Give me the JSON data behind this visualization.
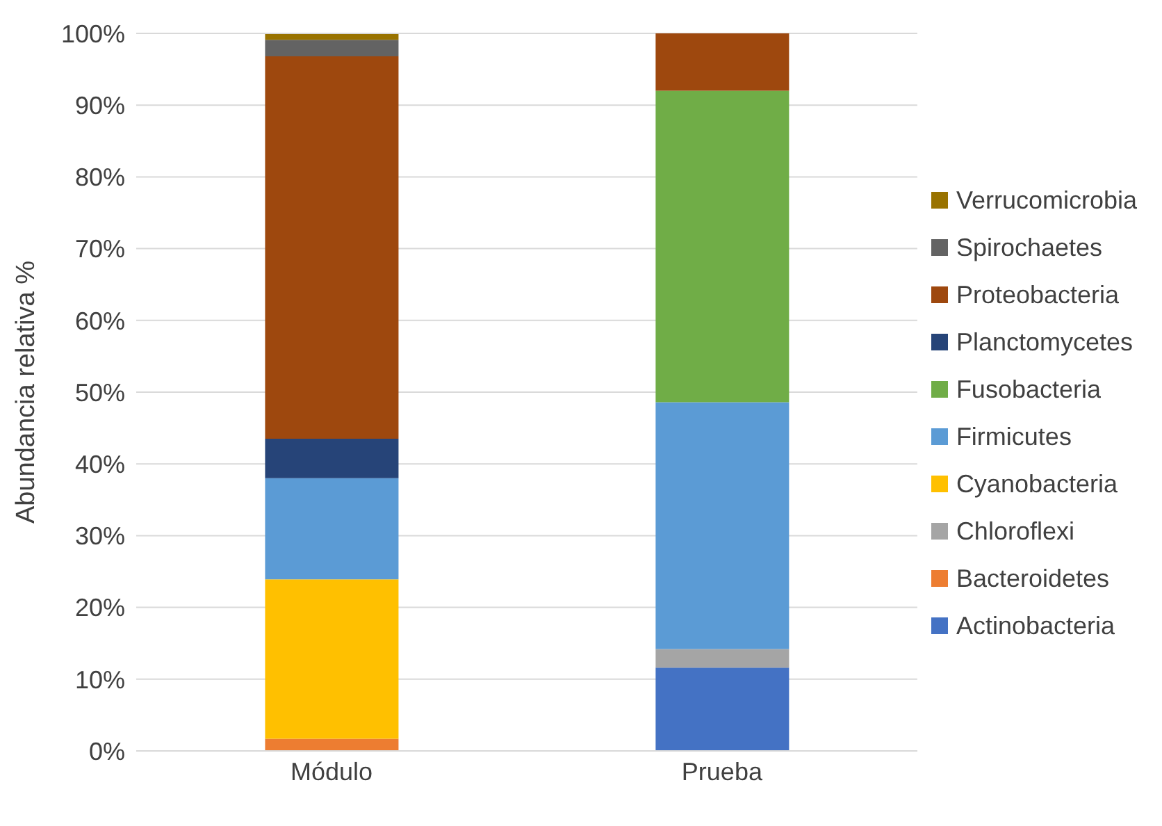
{
  "chart_data": {
    "type": "bar",
    "stacked": true,
    "categories": [
      "Módulo",
      "Prueba"
    ],
    "ylabel": "Abundancia relativa %",
    "ylim": [
      0,
      100
    ],
    "yticks": [
      {
        "value": 0,
        "label": "0%"
      },
      {
        "value": 10,
        "label": "10%"
      },
      {
        "value": 20,
        "label": "20%"
      },
      {
        "value": 30,
        "label": "30%"
      },
      {
        "value": 40,
        "label": "40%"
      },
      {
        "value": 50,
        "label": "50%"
      },
      {
        "value": 60,
        "label": "60%"
      },
      {
        "value": 70,
        "label": "70%"
      },
      {
        "value": 80,
        "label": "80%"
      },
      {
        "value": 90,
        "label": "90%"
      },
      {
        "value": 100,
        "label": "100%"
      }
    ],
    "grid": "y",
    "legend": "right",
    "series": [
      {
        "name": "Actinobacteria",
        "color": "#4472c4",
        "values": [
          0,
          11.6
        ]
      },
      {
        "name": "Bacteroidetes",
        "color": "#ed7d31",
        "values": [
          1.7,
          0
        ]
      },
      {
        "name": "Chloroflexi",
        "color": "#a5a5a5",
        "values": [
          0,
          2.6
        ]
      },
      {
        "name": "Cyanobacteria",
        "color": "#ffc000",
        "values": [
          22.2,
          0
        ]
      },
      {
        "name": "Firmicutes",
        "color": "#5b9bd5",
        "values": [
          14.1,
          34.4
        ]
      },
      {
        "name": "Fusobacteria",
        "color": "#70ad47",
        "values": [
          0,
          43.4
        ]
      },
      {
        "name": "Planctomycetes",
        "color": "#264478",
        "values": [
          5.5,
          0
        ]
      },
      {
        "name": "Proteobacteria",
        "color": "#9e480e",
        "values": [
          53.3,
          8
        ]
      },
      {
        "name": "Spirochaetes",
        "color": "#636363",
        "values": [
          2.3,
          0
        ]
      },
      {
        "name": "Verrucomicrobia",
        "color": "#997300",
        "values": [
          0.8,
          0
        ]
      }
    ]
  }
}
